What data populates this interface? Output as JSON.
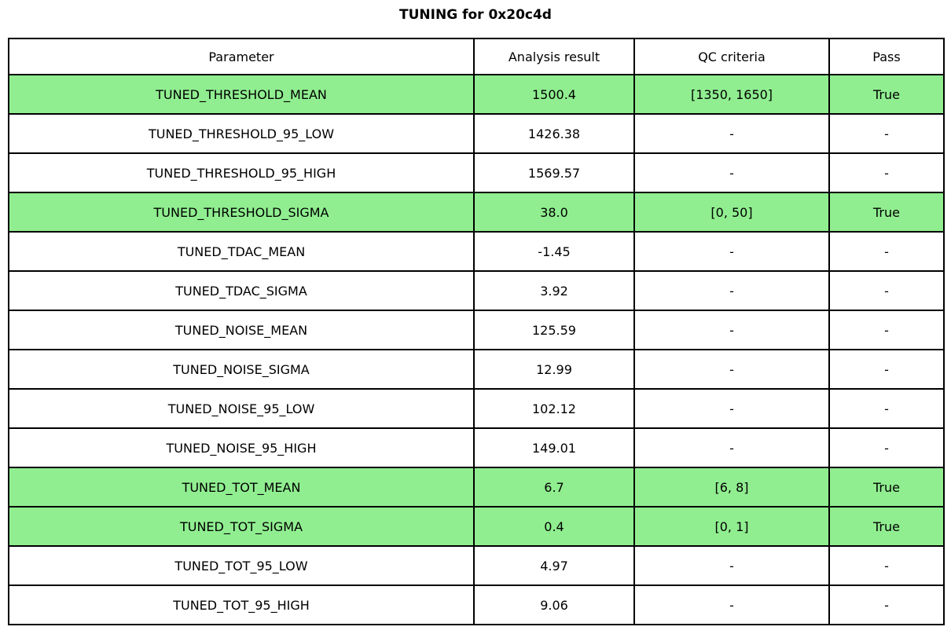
{
  "title": "TUNING for 0x20c4d",
  "colors": {
    "highlight_green": "#90ee90",
    "border": "#000000",
    "background": "#ffffff",
    "text": "#000000"
  },
  "chart_data": {
    "type": "table",
    "title": "TUNING for 0x20c4d",
    "columns": [
      "Parameter",
      "Analysis result",
      "QC criteria",
      "Pass"
    ],
    "highlight_color": "#90ee90",
    "rows": [
      {
        "cells": [
          "TUNED_THRESHOLD_MEAN",
          "1500.4",
          "[1350, 1650]",
          "True"
        ],
        "highlight": true
      },
      {
        "cells": [
          "TUNED_THRESHOLD_95_LOW",
          "1426.38",
          "-",
          "-"
        ],
        "highlight": false
      },
      {
        "cells": [
          "TUNED_THRESHOLD_95_HIGH",
          "1569.57",
          "-",
          "-"
        ],
        "highlight": false
      },
      {
        "cells": [
          "TUNED_THRESHOLD_SIGMA",
          "38.0",
          "[0, 50]",
          "True"
        ],
        "highlight": true
      },
      {
        "cells": [
          "TUNED_TDAC_MEAN",
          "-1.45",
          "-",
          "-"
        ],
        "highlight": false
      },
      {
        "cells": [
          "TUNED_TDAC_SIGMA",
          "3.92",
          "-",
          "-"
        ],
        "highlight": false
      },
      {
        "cells": [
          "TUNED_NOISE_MEAN",
          "125.59",
          "-",
          "-"
        ],
        "highlight": false
      },
      {
        "cells": [
          "TUNED_NOISE_SIGMA",
          "12.99",
          "-",
          "-"
        ],
        "highlight": false
      },
      {
        "cells": [
          "TUNED_NOISE_95_LOW",
          "102.12",
          "-",
          "-"
        ],
        "highlight": false
      },
      {
        "cells": [
          "TUNED_NOISE_95_HIGH",
          "149.01",
          "-",
          "-"
        ],
        "highlight": false
      },
      {
        "cells": [
          "TUNED_TOT_MEAN",
          "6.7",
          "[6, 8]",
          "True"
        ],
        "highlight": true
      },
      {
        "cells": [
          "TUNED_TOT_SIGMA",
          "0.4",
          "[0, 1]",
          "True"
        ],
        "highlight": true
      },
      {
        "cells": [
          "TUNED_TOT_95_LOW",
          "4.97",
          "-",
          "-"
        ],
        "highlight": false
      },
      {
        "cells": [
          "TUNED_TOT_95_HIGH",
          "9.06",
          "-",
          "-"
        ],
        "highlight": false
      }
    ]
  }
}
